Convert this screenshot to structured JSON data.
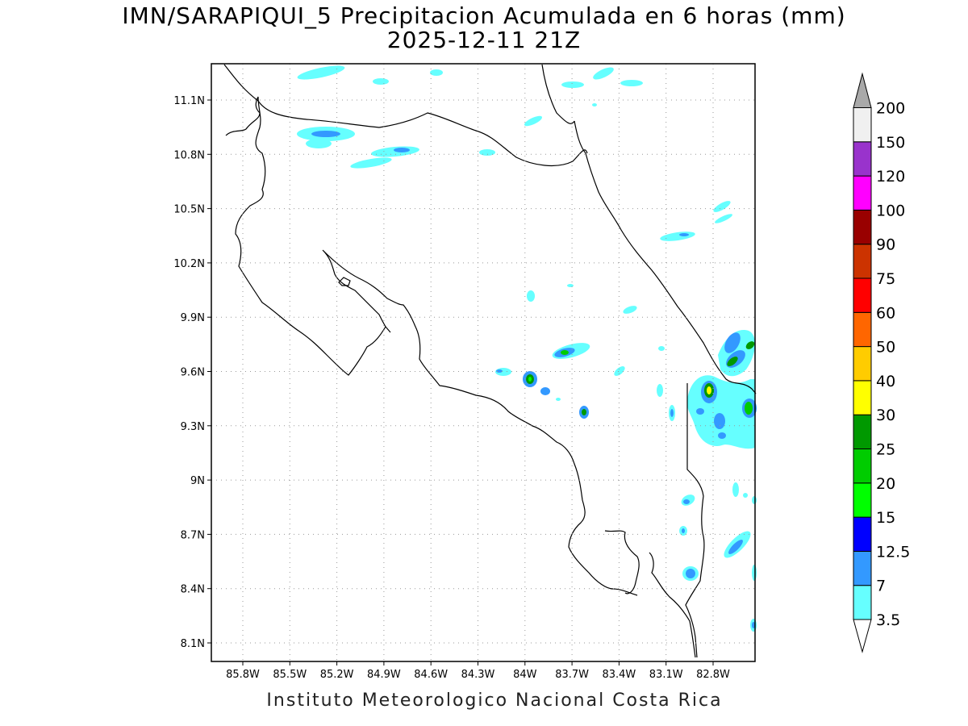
{
  "header": {
    "title": "IMN/SARAPIQUI_5 Precipitacion Acumulada en 6 horas (mm)",
    "subtitle": "2025-12-11 21Z"
  },
  "footer": {
    "text": "Instituto Meteorologico Nacional Costa Rica"
  },
  "axes": {
    "lon_ticks": [
      "85.8W",
      "85.5W",
      "85.2W",
      "84.9W",
      "84.6W",
      "84.3W",
      "84W",
      "83.7W",
      "83.4W",
      "83.1W",
      "82.8W"
    ],
    "lat_ticks": [
      "11.1N",
      "10.8N",
      "10.5N",
      "10.2N",
      "9.9N",
      "9.6N",
      "9.3N",
      "9N",
      "8.7N",
      "8.4N",
      "8.1N"
    ]
  },
  "colorbar": {
    "levels": [
      {
        "label": "3.5",
        "color": "#66ffff"
      },
      {
        "label": "7",
        "color": "#3399ff"
      },
      {
        "label": "12.5",
        "color": "#0000ff"
      },
      {
        "label": "15",
        "color": "#00ff00"
      },
      {
        "label": "20",
        "color": "#00cc00"
      },
      {
        "label": "25",
        "color": "#009900"
      },
      {
        "label": "30",
        "color": "#ffff00"
      },
      {
        "label": "40",
        "color": "#ffcc00"
      },
      {
        "label": "50",
        "color": "#ff6600"
      },
      {
        "label": "60",
        "color": "#ff0000"
      },
      {
        "label": "75",
        "color": "#cc3300"
      },
      {
        "label": "90",
        "color": "#990000"
      },
      {
        "label": "100",
        "color": "#ff00ff"
      },
      {
        "label": "120",
        "color": "#9933cc"
      },
      {
        "label": "150",
        "color": "#f0f0f0"
      },
      {
        "label": "200",
        "color": "#a9a9a9"
      }
    ]
  }
}
